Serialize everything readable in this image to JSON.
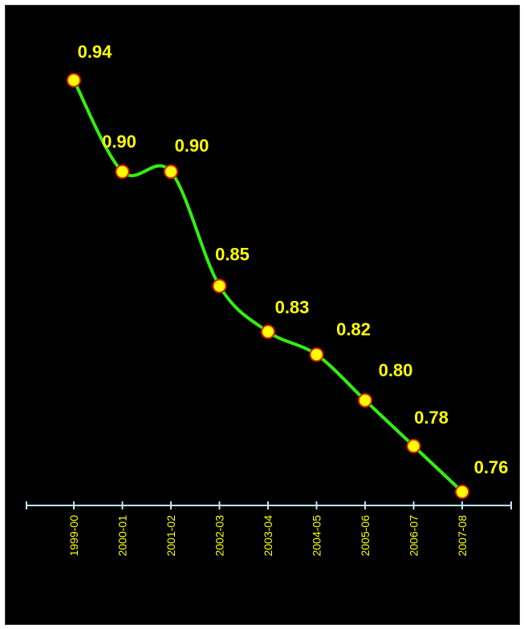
{
  "chart_data": {
    "type": "line",
    "title": "",
    "xlabel": "",
    "ylabel": "",
    "categories": [
      "1999-00",
      "2000-01",
      "2001-02",
      "2002-03",
      "2003-04",
      "2004-05",
      "2005-06",
      "2006-07",
      "2007-08"
    ],
    "values": [
      0.94,
      0.9,
      0.9,
      0.85,
      0.83,
      0.82,
      0.8,
      0.78,
      0.76
    ],
    "data_labels": [
      "0.94",
      "0.90",
      "0.90",
      "0.85",
      "0.83",
      "0.82",
      "0.80",
      "0.78",
      "0.76"
    ],
    "smooth": true,
    "grid": false,
    "legend": "none",
    "colors": {
      "background": "#000000",
      "line": "#33ee11",
      "marker_fill": "#ffff00",
      "marker_stroke": "#dd2200",
      "data_label": "#ffff00",
      "tick_label": "#ffff00",
      "axis": "#bfe6ff"
    }
  }
}
